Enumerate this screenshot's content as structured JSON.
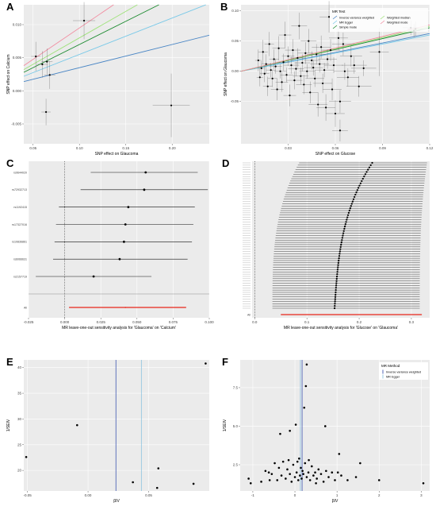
{
  "panel_labels": [
    "A",
    "B",
    "C",
    "D",
    "E",
    "F"
  ],
  "colors": {
    "panel_bg": "#ebebeb",
    "grid": "#ffffff",
    "point": "#000000",
    "errorbar": "#555555",
    "ivw": "#4a86c5",
    "egger": "#79c9e8",
    "simple": "#1a8a2e",
    "weighted_median": "#9ee27a",
    "weighted_mode": "#f28ca0",
    "overall": "#e8251a",
    "vline_ivw": "#3e56b0",
    "vline_egger": "#8cc3e0"
  },
  "chart_data": [
    {
      "panel": "A",
      "type": "scatter",
      "xlabel": "SNP effect on Glaucoma",
      "ylabel": "SNP effect on Calcium",
      "xlim": [
        0.04,
        0.24
      ],
      "ylim": [
        -0.008,
        0.013
      ],
      "xticks": [
        0.05,
        0.1,
        0.15,
        0.2
      ],
      "xtick_labels": [
        "0.05",
        "0.10",
        "0.15",
        "0.20"
      ],
      "yticks": [
        -0.005,
        0.0,
        0.005,
        0.01
      ],
      "ytick_labels": [
        "-0.005",
        "0.000",
        "0.005",
        "0.010"
      ],
      "points": [
        {
          "x": 0.053,
          "y": 0.0052,
          "xerr": 0.005,
          "yerr": 0.0022
        },
        {
          "x": 0.06,
          "y": 0.004,
          "xerr": 0.006,
          "yerr": 0.002
        },
        {
          "x": 0.064,
          "y": -0.0032,
          "xerr": 0.005,
          "yerr": 0.002
        },
        {
          "x": 0.068,
          "y": 0.0024,
          "xerr": 0.006,
          "yerr": 0.0021
        },
        {
          "x": 0.065,
          "y": 0.0044,
          "xerr": 0.006,
          "yerr": 0.002
        },
        {
          "x": 0.105,
          "y": 0.0106,
          "xerr": 0.012,
          "yerr": 0.0028
        },
        {
          "x": 0.199,
          "y": -0.0022,
          "xerr": 0.02,
          "yerr": 0.0048
        }
      ],
      "lines": [
        {
          "name": "Inverse variance weighted",
          "color": "#4a86c5",
          "intercept": 0.0,
          "slope": 0.035
        },
        {
          "name": "MR Egger",
          "color": "#79c9e8",
          "intercept": 0.0,
          "slope": 0.055
        },
        {
          "name": "Simple mode",
          "color": "#1a8a2e",
          "intercept": 0.0,
          "slope": 0.07
        },
        {
          "name": "Weighted median",
          "color": "#9ee27a",
          "intercept": 0.0,
          "slope": 0.08
        },
        {
          "name": "Weighted mode",
          "color": "#f28ca0",
          "intercept": 0.0,
          "slope": 0.095
        }
      ]
    },
    {
      "panel": "B",
      "type": "scatter",
      "xlabel": "SNP effect on Glucose",
      "ylabel": "SNP effect on Glaucoma",
      "xlim": [
        0.0,
        0.12
      ],
      "ylim": [
        -0.12,
        0.11
      ],
      "xticks": [
        0.03,
        0.06,
        0.09,
        0.12
      ],
      "xtick_labels": [
        "0.03",
        "0.06",
        "0.09",
        "0.12"
      ],
      "yticks": [
        -0.05,
        0.0,
        0.05,
        0.1
      ],
      "ytick_labels": [
        "-0.05",
        "0.00",
        "0.05",
        "0.10"
      ],
      "legend_title": "MR Test",
      "legend_placement": "top-right",
      "legend": [
        {
          "name": "Inverse variance weighted",
          "color": "#4a86c5"
        },
        {
          "name": "MR Egger",
          "color": "#79c9e8"
        },
        {
          "name": "Simple mode",
          "color": "#1a8a2e"
        },
        {
          "name": "Weighted median",
          "color": "#9ee27a"
        },
        {
          "name": "Weighted mode",
          "color": "#f28ca0"
        }
      ],
      "points": [
        {
          "x": 0.011,
          "y": 0.018,
          "xerr": 0.002,
          "yerr": 0.018
        },
        {
          "x": 0.012,
          "y": -0.01,
          "xerr": 0.002,
          "yerr": 0.015
        },
        {
          "x": 0.013,
          "y": 0.005,
          "xerr": 0.002,
          "yerr": 0.012
        },
        {
          "x": 0.014,
          "y": 0.032,
          "xerr": 0.003,
          "yerr": 0.02
        },
        {
          "x": 0.015,
          "y": -0.004,
          "xerr": 0.003,
          "yerr": 0.014
        },
        {
          "x": 0.016,
          "y": 0.012,
          "xerr": 0.003,
          "yerr": 0.016
        },
        {
          "x": 0.017,
          "y": -0.025,
          "xerr": 0.003,
          "yerr": 0.016
        },
        {
          "x": 0.018,
          "y": 0.045,
          "xerr": 0.003,
          "yerr": 0.02
        },
        {
          "x": 0.019,
          "y": 0.002,
          "xerr": 0.003,
          "yerr": 0.012
        },
        {
          "x": 0.02,
          "y": -0.012,
          "xerr": 0.003,
          "yerr": 0.014
        },
        {
          "x": 0.021,
          "y": 0.02,
          "xerr": 0.003,
          "yerr": 0.016
        },
        {
          "x": 0.022,
          "y": 0.008,
          "xerr": 0.004,
          "yerr": 0.012
        },
        {
          "x": 0.023,
          "y": -0.03,
          "xerr": 0.004,
          "yerr": 0.018
        },
        {
          "x": 0.024,
          "y": 0.038,
          "xerr": 0.004,
          "yerr": 0.02
        },
        {
          "x": 0.025,
          "y": 0.0,
          "xerr": 0.004,
          "yerr": 0.012
        },
        {
          "x": 0.026,
          "y": -0.018,
          "xerr": 0.004,
          "yerr": 0.016
        },
        {
          "x": 0.027,
          "y": 0.015,
          "xerr": 0.004,
          "yerr": 0.014
        },
        {
          "x": 0.028,
          "y": 0.06,
          "xerr": 0.004,
          "yerr": 0.022
        },
        {
          "x": 0.029,
          "y": -0.006,
          "xerr": 0.004,
          "yerr": 0.012
        },
        {
          "x": 0.03,
          "y": 0.025,
          "xerr": 0.004,
          "yerr": 0.016
        },
        {
          "x": 0.031,
          "y": -0.04,
          "xerr": 0.004,
          "yerr": 0.018
        },
        {
          "x": 0.032,
          "y": 0.01,
          "xerr": 0.005,
          "yerr": 0.014
        },
        {
          "x": 0.033,
          "y": 0.035,
          "xerr": 0.005,
          "yerr": 0.018
        },
        {
          "x": 0.034,
          "y": -0.015,
          "xerr": 0.005,
          "yerr": 0.015
        },
        {
          "x": 0.035,
          "y": 0.004,
          "xerr": 0.005,
          "yerr": 0.012
        },
        {
          "x": 0.036,
          "y": 0.022,
          "xerr": 0.005,
          "yerr": 0.016
        },
        {
          "x": 0.037,
          "y": 0.075,
          "xerr": 0.005,
          "yerr": 0.022
        },
        {
          "x": 0.038,
          "y": -0.008,
          "xerr": 0.005,
          "yerr": 0.014
        },
        {
          "x": 0.039,
          "y": 0.014,
          "xerr": 0.005,
          "yerr": 0.014
        },
        {
          "x": 0.04,
          "y": -0.022,
          "xerr": 0.005,
          "yerr": 0.016
        },
        {
          "x": 0.041,
          "y": 0.03,
          "xerr": 0.005,
          "yerr": 0.018
        },
        {
          "x": 0.042,
          "y": 0.0,
          "xerr": 0.005,
          "yerr": 0.012
        },
        {
          "x": 0.043,
          "y": 0.05,
          "xerr": 0.005,
          "yerr": 0.02
        },
        {
          "x": 0.044,
          "y": -0.035,
          "xerr": 0.005,
          "yerr": 0.018
        },
        {
          "x": 0.045,
          "y": 0.018,
          "xerr": 0.005,
          "yerr": 0.015
        },
        {
          "x": 0.046,
          "y": 0.006,
          "xerr": 0.006,
          "yerr": 0.013
        },
        {
          "x": 0.047,
          "y": -0.012,
          "xerr": 0.006,
          "yerr": 0.014
        },
        {
          "x": 0.048,
          "y": 0.028,
          "xerr": 0.006,
          "yerr": 0.017
        },
        {
          "x": 0.049,
          "y": -0.055,
          "xerr": 0.006,
          "yerr": 0.02
        },
        {
          "x": 0.05,
          "y": 0.012,
          "xerr": 0.006,
          "yerr": 0.014
        },
        {
          "x": 0.051,
          "y": 0.04,
          "xerr": 0.006,
          "yerr": 0.019
        },
        {
          "x": 0.052,
          "y": -0.02,
          "xerr": 0.006,
          "yerr": 0.016
        },
        {
          "x": 0.053,
          "y": 0.002,
          "xerr": 0.006,
          "yerr": 0.012
        },
        {
          "x": 0.054,
          "y": -0.06,
          "xerr": 0.006,
          "yerr": 0.022
        },
        {
          "x": 0.055,
          "y": 0.02,
          "xerr": 0.006,
          "yerr": 0.016
        },
        {
          "x": 0.056,
          "y": 0.09,
          "xerr": 0.006,
          "yerr": 0.026
        },
        {
          "x": 0.057,
          "y": 0.035,
          "xerr": 0.006,
          "yerr": 0.018
        },
        {
          "x": 0.058,
          "y": -0.03,
          "xerr": 0.006,
          "yerr": 0.018
        },
        {
          "x": 0.059,
          "y": 0.01,
          "xerr": 0.006,
          "yerr": 0.013
        },
        {
          "x": 0.06,
          "y": -0.07,
          "xerr": 0.006,
          "yerr": 0.022
        },
        {
          "x": 0.062,
          "y": 0.055,
          "xerr": 0.006,
          "yerr": 0.02
        },
        {
          "x": 0.063,
          "y": -0.05,
          "xerr": 0.007,
          "yerr": 0.019
        },
        {
          "x": 0.065,
          "y": 0.045,
          "xerr": 0.007,
          "yerr": 0.019
        },
        {
          "x": 0.066,
          "y": 0.0,
          "xerr": 0.007,
          "yerr": 0.014
        },
        {
          "x": 0.068,
          "y": -0.01,
          "xerr": 0.007,
          "yerr": 0.015
        },
        {
          "x": 0.07,
          "y": 0.025,
          "xerr": 0.007,
          "yerr": 0.017
        },
        {
          "x": 0.072,
          "y": 0.01,
          "xerr": 0.008,
          "yerr": 0.014
        },
        {
          "x": 0.075,
          "y": -0.025,
          "xerr": 0.008,
          "yerr": 0.017
        },
        {
          "x": 0.078,
          "y": 0.005,
          "xerr": 0.008,
          "yerr": 0.013
        },
        {
          "x": 0.063,
          "y": -0.098,
          "xerr": 0.005,
          "yerr": 0.018
        },
        {
          "x": 0.088,
          "y": 0.032,
          "xerr": 0.006,
          "yerr": 0.04
        },
        {
          "x": 0.108,
          "y": 0.072,
          "xerr": 0.005,
          "yerr": 0.012
        },
        {
          "x": 0.111,
          "y": 0.07,
          "xerr": 0.005,
          "yerr": 0.012
        },
        {
          "x": 0.11,
          "y": 0.067,
          "xerr": 0.004,
          "yerr": 0.011
        }
      ],
      "lines": [
        {
          "name": "Inverse variance weighted",
          "color": "#4a86c5",
          "intercept": 0.0,
          "slope": 0.52
        },
        {
          "name": "MR Egger",
          "color": "#79c9e8",
          "intercept": 0.0,
          "slope": 0.5
        },
        {
          "name": "Simple mode",
          "color": "#1a8a2e",
          "intercept": 0.0,
          "slope": 0.6
        },
        {
          "name": "Weighted median",
          "color": "#9ee27a",
          "intercept": 0.0,
          "slope": 0.62
        },
        {
          "name": "Weighted mode",
          "color": "#f28ca0",
          "intercept": 0.0,
          "slope": 0.64
        }
      ]
    },
    {
      "panel": "C",
      "type": "forest",
      "xlabel": "MR leave-one-out sensitivity analysis for 'Glaucoma' on 'Calcium'",
      "xlim": [
        -0.025,
        0.1
      ],
      "xticks": [
        -0.025,
        0.0,
        0.025,
        0.05,
        0.075,
        0.1
      ],
      "xtick_labels": [
        "-0.025",
        "0.000",
        "0.025",
        "0.050",
        "0.075",
        "0.100"
      ],
      "rows": [
        {
          "label": "rs9644020",
          "est": 0.056,
          "lo": 0.018,
          "hi": 0.092
        },
        {
          "label": "rs72932713",
          "est": 0.055,
          "lo": 0.011,
          "hi": 0.099
        },
        {
          "label": "rs1192415",
          "est": 0.044,
          "lo": -0.004,
          "hi": 0.09
        },
        {
          "label": "rs17327016",
          "est": 0.042,
          "lo": -0.006,
          "hi": 0.089
        },
        {
          "label": "rs10836861",
          "est": 0.041,
          "lo": -0.007,
          "hi": 0.088
        },
        {
          "label": "rs6066631",
          "est": 0.038,
          "lo": -0.008,
          "hi": 0.085
        },
        {
          "label": "rs2157719",
          "est": 0.02,
          "lo": -0.02,
          "hi": 0.06
        }
      ],
      "overall": {
        "label": "All",
        "est": 0.042,
        "lo": 0.003,
        "hi": 0.084
      }
    },
    {
      "panel": "D",
      "type": "forest",
      "xlabel": "MR leave-one-out sensitivity analysis for 'Glucose' on 'Glaucoma'",
      "xlim": [
        -0.005,
        0.335
      ],
      "xticks": [
        0.0,
        0.1,
        0.2,
        0.3
      ],
      "xtick_labels": [
        "0.0",
        "0.1",
        "0.2",
        "0.3"
      ],
      "n_rows": 65,
      "est_range": [
        0.153,
        0.225
      ],
      "lo_range": [
        0.012,
        0.085
      ],
      "hi_range": [
        0.295,
        0.33
      ],
      "overall": {
        "label": "All",
        "est": 0.185,
        "lo": 0.05,
        "hi": 0.32
      }
    },
    {
      "panel": "E",
      "type": "funnel",
      "xlabel": "βIV",
      "ylabel": "1/SEIV",
      "xlim": [
        -0.053,
        0.1
      ],
      "ylim": [
        16.0,
        41.5
      ],
      "xticks": [
        -0.05,
        0.0,
        0.05
      ],
      "xtick_labels": [
        "-0.05",
        "0.00",
        "0.05"
      ],
      "yticks": [
        20,
        25,
        30,
        35,
        40
      ],
      "ytick_labels": [
        "20",
        "25",
        "30",
        "35",
        "40"
      ],
      "points": [
        {
          "x": -0.051,
          "y": 22.6
        },
        {
          "x": -0.009,
          "y": 28.8
        },
        {
          "x": 0.037,
          "y": 17.7
        },
        {
          "x": 0.057,
          "y": 16.6
        },
        {
          "x": 0.058,
          "y": 20.4
        },
        {
          "x": 0.087,
          "y": 17.4
        },
        {
          "x": 0.097,
          "y": 40.8
        }
      ],
      "vlines": [
        {
          "x": 0.023,
          "color": "#3e56b0"
        },
        {
          "x": 0.044,
          "color": "#8cc3e0"
        }
      ]
    },
    {
      "panel": "F",
      "type": "funnel",
      "xlabel": "βIV",
      "ylabel": "1/SEIV",
      "xlim": [
        -1.3,
        3.2
      ],
      "ylim": [
        0.8,
        9.3
      ],
      "xticks": [
        -1,
        0,
        1,
        2,
        3
      ],
      "xtick_labels": [
        "-1",
        "0",
        "1",
        "2",
        "3"
      ],
      "yticks": [
        2.5,
        5.0,
        7.5
      ],
      "ytick_labels": [
        "2.5",
        "5.0",
        "7.5"
      ],
      "legend_title": "MR Method",
      "legend_placement": "top-right",
      "legend": [
        {
          "name": "Inverse variance weighted",
          "color": "#3e56b0"
        },
        {
          "name": "MR Egger",
          "color": "#8cc3e0"
        }
      ],
      "points": [
        {
          "x": 0.28,
          "y": 9.0
        },
        {
          "x": 0.26,
          "y": 7.6
        },
        {
          "x": 0.22,
          "y": 6.2
        },
        {
          "x": -0.35,
          "y": 4.5
        },
        {
          "x": -0.12,
          "y": 4.7
        },
        {
          "x": 0.02,
          "y": 5.1
        },
        {
          "x": 0.72,
          "y": 5.0
        },
        {
          "x": 1.05,
          "y": 3.2
        },
        {
          "x": 1.55,
          "y": 2.6
        },
        {
          "x": -1.1,
          "y": 1.6
        },
        {
          "x": -1.05,
          "y": 1.3
        },
        {
          "x": -0.8,
          "y": 1.4
        },
        {
          "x": -0.7,
          "y": 2.1
        },
        {
          "x": -0.62,
          "y": 2.0
        },
        {
          "x": -0.55,
          "y": 1.9
        },
        {
          "x": -0.48,
          "y": 2.6
        },
        {
          "x": -0.42,
          "y": 1.5
        },
        {
          "x": -0.38,
          "y": 2.3
        },
        {
          "x": -0.32,
          "y": 1.8
        },
        {
          "x": -0.28,
          "y": 2.7
        },
        {
          "x": -0.22,
          "y": 1.6
        },
        {
          "x": -0.18,
          "y": 2.2
        },
        {
          "x": -0.12,
          "y": 1.9
        },
        {
          "x": -0.08,
          "y": 1.4
        },
        {
          "x": -0.04,
          "y": 2.5
        },
        {
          "x": 0.0,
          "y": 1.7
        },
        {
          "x": 0.04,
          "y": 2.0
        },
        {
          "x": 0.08,
          "y": 1.5
        },
        {
          "x": 0.1,
          "y": 2.9
        },
        {
          "x": 0.12,
          "y": 1.8
        },
        {
          "x": 0.14,
          "y": 2.3
        },
        {
          "x": 0.16,
          "y": 1.6
        },
        {
          "x": 0.18,
          "y": 2.1
        },
        {
          "x": 0.2,
          "y": 1.9
        },
        {
          "x": 0.24,
          "y": 2.6
        },
        {
          "x": 0.28,
          "y": 1.7
        },
        {
          "x": 0.32,
          "y": 2.0
        },
        {
          "x": 0.36,
          "y": 1.5
        },
        {
          "x": 0.4,
          "y": 2.4
        },
        {
          "x": 0.44,
          "y": 1.8
        },
        {
          "x": 0.48,
          "y": 2.0
        },
        {
          "x": 0.52,
          "y": 1.6
        },
        {
          "x": 0.56,
          "y": 2.2
        },
        {
          "x": 0.62,
          "y": 1.9
        },
        {
          "x": 0.68,
          "y": 1.4
        },
        {
          "x": 0.74,
          "y": 2.1
        },
        {
          "x": 0.8,
          "y": 1.7
        },
        {
          "x": 0.88,
          "y": 2.0
        },
        {
          "x": 0.95,
          "y": 1.5
        },
        {
          "x": 1.02,
          "y": 2.0
        },
        {
          "x": 1.1,
          "y": 1.8
        },
        {
          "x": 1.25,
          "y": 1.5
        },
        {
          "x": 1.45,
          "y": 1.7
        },
        {
          "x": 2.0,
          "y": 1.5
        },
        {
          "x": 3.05,
          "y": 1.3
        },
        {
          "x": 0.06,
          "y": 2.7
        },
        {
          "x": -0.15,
          "y": 2.8
        },
        {
          "x": 0.33,
          "y": 2.8
        },
        {
          "x": -0.6,
          "y": 1.5
        },
        {
          "x": 0.5,
          "y": 1.3
        }
      ],
      "vlines": [
        {
          "x": 0.17,
          "color": "#3e56b0"
        },
        {
          "x": 0.13,
          "color": "#8cc3e0"
        }
      ]
    }
  ]
}
